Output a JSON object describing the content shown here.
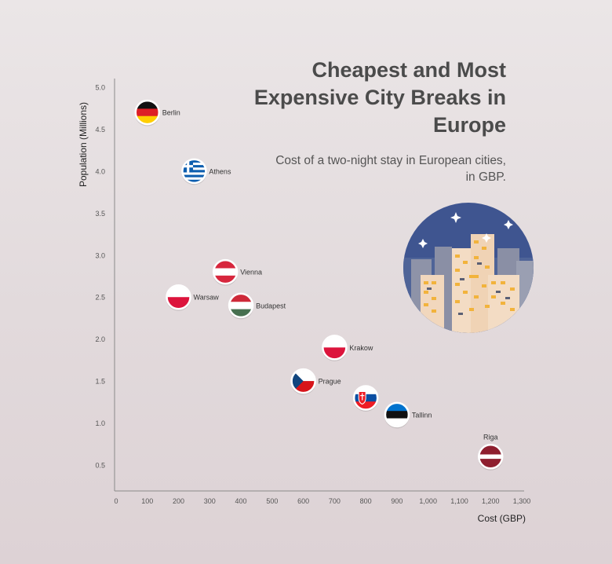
{
  "header": {
    "title": "Cheapest and Most Expensive City Breaks in Europe",
    "subtitle": "Cost of a two-night stay in European cities, in GBP."
  },
  "chart_data": {
    "type": "scatter",
    "xlabel": "Cost (GBP)",
    "ylabel": "Population (Millions)",
    "xlim": [
      0,
      1300
    ],
    "ylim": [
      0.2,
      5.0
    ],
    "xticks": [
      "0",
      "100",
      "200",
      "300",
      "400",
      "500",
      "600",
      "700",
      "800",
      "900",
      "1,000",
      "1,100",
      "1,200",
      "1,300"
    ],
    "yticks": [
      "5.0",
      "4.5",
      "4.0",
      "3.5",
      "3.0",
      "2.5",
      "2.0",
      "1.5",
      "1.0",
      "0.5"
    ],
    "grid": false,
    "points": [
      {
        "label": "Berlin",
        "x": 100,
        "y": 4.7,
        "flag": "germany-flag",
        "label_position": "right"
      },
      {
        "label": "Athens",
        "x": 250,
        "y": 4.0,
        "flag": "greece-flag",
        "label_position": "right"
      },
      {
        "label": "Vienna",
        "x": 350,
        "y": 2.8,
        "flag": "austria-flag",
        "label_position": "right"
      },
      {
        "label": "Warsaw",
        "x": 200,
        "y": 2.5,
        "flag": "poland-flag",
        "label_position": "right"
      },
      {
        "label": "Budapest",
        "x": 400,
        "y": 2.4,
        "flag": "hungary-flag",
        "label_position": "right"
      },
      {
        "label": "Krakow",
        "x": 700,
        "y": 1.9,
        "flag": "poland-flag",
        "label_position": "right"
      },
      {
        "label": "Prague",
        "x": 600,
        "y": 1.5,
        "flag": "czech-flag",
        "label_position": "right"
      },
      {
        "label": "Tallinn",
        "x": 900,
        "y": 1.1,
        "flag": "estonia-flag",
        "label_position": "right"
      },
      {
        "label": "",
        "x": 800,
        "y": 1.3,
        "flag": "slovakia-flag",
        "label_position": "none"
      },
      {
        "label": "Riga",
        "x": 1200,
        "y": 0.6,
        "flag": "latvia-flag",
        "label_position": "top"
      }
    ]
  },
  "colors": {
    "axis": "#8a8a8a",
    "tick_text": "#555555",
    "title": "#4b4b4b",
    "label_text": "#333333"
  }
}
